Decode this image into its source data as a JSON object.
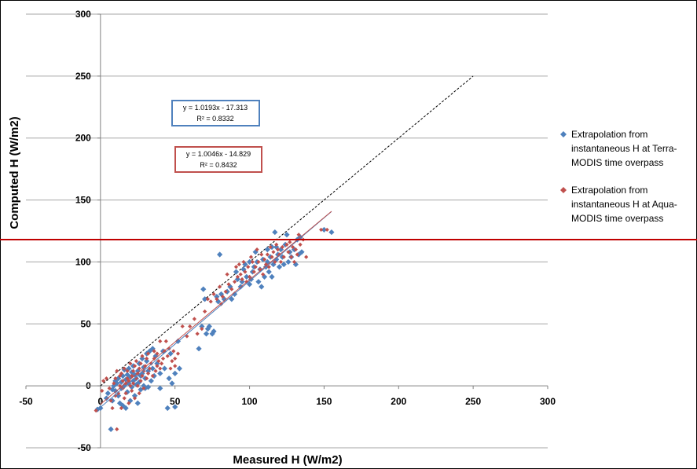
{
  "chart_data": {
    "type": "scatter",
    "title": "",
    "xlabel": "Measured H (W/m2)",
    "ylabel": "Computed H (W/m2)",
    "xlim": [
      -50,
      300
    ],
    "ylim": [
      -50,
      300
    ],
    "x_ticks": [
      "-50",
      "0",
      "50",
      "100",
      "150",
      "200",
      "250",
      "300"
    ],
    "y_ticks": [
      "-50",
      "0",
      "50",
      "100",
      "150",
      "200",
      "250",
      "300"
    ],
    "grid": "horizontal",
    "legend_position": "right",
    "one_to_one_line": {
      "x": [
        0,
        250
      ],
      "y": [
        0,
        250
      ],
      "color": "#000000",
      "style": "dashed"
    },
    "highlight_line": {
      "y": 118,
      "color": "#c00000"
    },
    "series": [
      {
        "name": "Extrapolation from instantaneous H at Terra-MODIS time overpass",
        "legend_lines": [
          "Extrapolation from",
          "instantaneous H at Terra-",
          "MODIS time overpass"
        ],
        "color": "#4f81bd",
        "marker": "diamond",
        "fit": {
          "slope": 1.0193,
          "intercept": -17.313,
          "x_range": [
            0,
            155
          ],
          "equation": "y = 1.0193x - 17.313",
          "r2_label": "R² = 0.8332"
        },
        "points": [
          [
            -2,
            -19
          ],
          [
            0,
            -18
          ],
          [
            4,
            -10
          ],
          [
            5,
            -6
          ],
          [
            7,
            -35
          ],
          [
            8,
            -12
          ],
          [
            8,
            -3
          ],
          [
            9,
            0
          ],
          [
            10,
            4
          ],
          [
            10,
            -4
          ],
          [
            11,
            2
          ],
          [
            12,
            -8
          ],
          [
            12,
            6
          ],
          [
            13,
            -14
          ],
          [
            14,
            -2
          ],
          [
            14,
            3
          ],
          [
            15,
            8
          ],
          [
            15,
            -16
          ],
          [
            16,
            13
          ],
          [
            16,
            0
          ],
          [
            17,
            -18
          ],
          [
            17,
            5
          ],
          [
            18,
            9
          ],
          [
            18,
            -5
          ],
          [
            19,
            2
          ],
          [
            19,
            14
          ],
          [
            20,
            -12
          ],
          [
            20,
            7
          ],
          [
            21,
            -1
          ],
          [
            21,
            11
          ],
          [
            22,
            4
          ],
          [
            22,
            16
          ],
          [
            23,
            -8
          ],
          [
            23,
            9
          ],
          [
            24,
            1
          ],
          [
            24,
            6
          ],
          [
            25,
            12
          ],
          [
            25,
            -14
          ],
          [
            26,
            3
          ],
          [
            26,
            18
          ],
          [
            27,
            -3
          ],
          [
            27,
            8
          ],
          [
            28,
            10
          ],
          [
            28,
            22
          ],
          [
            29,
            0
          ],
          [
            29,
            15
          ],
          [
            30,
            -2
          ],
          [
            30,
            6
          ],
          [
            31,
            20
          ],
          [
            31,
            26
          ],
          [
            32,
            -1
          ],
          [
            32,
            12
          ],
          [
            33,
            28
          ],
          [
            34,
            4
          ],
          [
            35,
            14
          ],
          [
            35,
            30
          ],
          [
            36,
            8
          ],
          [
            37,
            24
          ],
          [
            38,
            18
          ],
          [
            40,
            10
          ],
          [
            40,
            -2
          ],
          [
            42,
            28
          ],
          [
            43,
            14
          ],
          [
            45,
            -18
          ],
          [
            46,
            6
          ],
          [
            47,
            26
          ],
          [
            48,
            2
          ],
          [
            50,
            10
          ],
          [
            50,
            -17
          ],
          [
            52,
            36
          ],
          [
            53,
            14
          ],
          [
            66,
            30
          ],
          [
            68,
            48
          ],
          [
            69,
            78
          ],
          [
            70,
            70
          ],
          [
            71,
            42
          ],
          [
            72,
            46
          ],
          [
            73,
            48
          ],
          [
            75,
            42
          ],
          [
            76,
            44
          ],
          [
            78,
            72
          ],
          [
            79,
            68
          ],
          [
            80,
            106
          ],
          [
            81,
            74
          ],
          [
            83,
            70
          ],
          [
            85,
            76
          ],
          [
            87,
            80
          ],
          [
            88,
            70
          ],
          [
            90,
            74
          ],
          [
            91,
            92
          ],
          [
            92,
            86
          ],
          [
            94,
            80
          ],
          [
            95,
            84
          ],
          [
            96,
            94
          ],
          [
            97,
            98
          ],
          [
            98,
            88
          ],
          [
            100,
            82
          ],
          [
            100,
            100
          ],
          [
            101,
            86
          ],
          [
            102,
            92
          ],
          [
            103,
            96
          ],
          [
            104,
            108
          ],
          [
            105,
            100
          ],
          [
            106,
            84
          ],
          [
            107,
            94
          ],
          [
            108,
            80
          ],
          [
            109,
            102
          ],
          [
            110,
            88
          ],
          [
            111,
            96
          ],
          [
            112,
            110
          ],
          [
            112,
            100
          ],
          [
            113,
            92
          ],
          [
            114,
            104
          ],
          [
            115,
            88
          ],
          [
            115,
            112
          ],
          [
            116,
            98
          ],
          [
            117,
            124
          ],
          [
            118,
            102
          ],
          [
            118,
            112
          ],
          [
            119,
            106
          ],
          [
            120,
            96
          ],
          [
            121,
            110
          ],
          [
            122,
            104
          ],
          [
            123,
            98
          ],
          [
            124,
            114
          ],
          [
            125,
            122
          ],
          [
            126,
            100
          ],
          [
            127,
            108
          ],
          [
            128,
            104
          ],
          [
            130,
            110
          ],
          [
            131,
            98
          ],
          [
            132,
            118
          ],
          [
            133,
            106
          ],
          [
            134,
            120
          ],
          [
            135,
            108
          ],
          [
            150,
            126
          ],
          [
            155,
            124
          ]
        ]
      },
      {
        "name": "Extrapolation from instantaneous H at Aqua-MODIS time overpass",
        "legend_lines": [
          "Extrapolation from",
          "instantaneous H at Aqua-",
          "MODIS time overpass"
        ],
        "color": "#c0504d",
        "marker": "diamond",
        "fit": {
          "slope": 1.0046,
          "intercept": -14.829,
          "x_range": [
            0,
            155
          ],
          "equation": "y = 1.0046x - 14.829",
          "r2_label": "R² = 0.8432"
        },
        "points": [
          [
            -3,
            -20
          ],
          [
            1,
            -4
          ],
          [
            2,
            4
          ],
          [
            4,
            6
          ],
          [
            6,
            -2
          ],
          [
            7,
            -12
          ],
          [
            8,
            -18
          ],
          [
            9,
            2
          ],
          [
            10,
            -8
          ],
          [
            10,
            6
          ],
          [
            11,
            -35
          ],
          [
            11,
            12
          ],
          [
            12,
            -6
          ],
          [
            13,
            0
          ],
          [
            13,
            8
          ],
          [
            14,
            -18
          ],
          [
            14,
            10
          ],
          [
            15,
            -2
          ],
          [
            15,
            4
          ],
          [
            16,
            -10
          ],
          [
            16,
            14
          ],
          [
            17,
            2
          ],
          [
            17,
            -6
          ],
          [
            18,
            6
          ],
          [
            18,
            12
          ],
          [
            19,
            -14
          ],
          [
            19,
            4
          ],
          [
            20,
            0
          ],
          [
            20,
            18
          ],
          [
            21,
            8
          ],
          [
            21,
            -4
          ],
          [
            22,
            12
          ],
          [
            22,
            2
          ],
          [
            23,
            16
          ],
          [
            23,
            -10
          ],
          [
            24,
            6
          ],
          [
            24,
            20
          ],
          [
            25,
            0
          ],
          [
            25,
            10
          ],
          [
            26,
            14
          ],
          [
            26,
            -6
          ],
          [
            27,
            18
          ],
          [
            27,
            4
          ],
          [
            28,
            8
          ],
          [
            28,
            24
          ],
          [
            29,
            12
          ],
          [
            29,
            -2
          ],
          [
            30,
            16
          ],
          [
            31,
            6
          ],
          [
            31,
            22
          ],
          [
            32,
            10
          ],
          [
            32,
            26
          ],
          [
            33,
            14
          ],
          [
            34,
            18
          ],
          [
            35,
            8
          ],
          [
            36,
            22
          ],
          [
            36,
            28
          ],
          [
            37,
            12
          ],
          [
            38,
            16
          ],
          [
            38,
            26
          ],
          [
            39,
            20
          ],
          [
            40,
            14
          ],
          [
            40,
            36
          ],
          [
            41,
            18
          ],
          [
            42,
            22
          ],
          [
            43,
            28
          ],
          [
            44,
            36
          ],
          [
            45,
            24
          ],
          [
            46,
            30
          ],
          [
            47,
            14
          ],
          [
            48,
            20
          ],
          [
            49,
            28
          ],
          [
            50,
            16
          ],
          [
            50,
            22
          ],
          [
            52,
            26
          ],
          [
            55,
            48
          ],
          [
            58,
            40
          ],
          [
            60,
            48
          ],
          [
            63,
            54
          ],
          [
            65,
            42
          ],
          [
            68,
            46
          ],
          [
            70,
            60
          ],
          [
            72,
            70
          ],
          [
            74,
            68
          ],
          [
            76,
            74
          ],
          [
            78,
            70
          ],
          [
            80,
            80
          ],
          [
            81,
            66
          ],
          [
            82,
            72
          ],
          [
            84,
            76
          ],
          [
            85,
            90
          ],
          [
            86,
            82
          ],
          [
            88,
            78
          ],
          [
            90,
            84
          ],
          [
            91,
            96
          ],
          [
            92,
            88
          ],
          [
            93,
            98
          ],
          [
            94,
            90
          ],
          [
            95,
            86
          ],
          [
            96,
            100
          ],
          [
            97,
            92
          ],
          [
            98,
            84
          ],
          [
            99,
            96
          ],
          [
            100,
            88
          ],
          [
            101,
            104
          ],
          [
            102,
            100
          ],
          [
            103,
            92
          ],
          [
            104,
            96
          ],
          [
            105,
            110
          ],
          [
            106,
            100
          ],
          [
            107,
            94
          ],
          [
            108,
            106
          ],
          [
            109,
            90
          ],
          [
            110,
            102
          ],
          [
            111,
            98
          ],
          [
            112,
            106
          ],
          [
            113,
            96
          ],
          [
            114,
            112
          ],
          [
            115,
            104
          ],
          [
            116,
            108
          ],
          [
            117,
            100
          ],
          [
            118,
            114
          ],
          [
            119,
            110
          ],
          [
            120,
            106
          ],
          [
            121,
            100
          ],
          [
            122,
            112
          ],
          [
            123,
            104
          ],
          [
            125,
            114
          ],
          [
            126,
            108
          ],
          [
            127,
            116
          ],
          [
            128,
            104
          ],
          [
            129,
            112
          ],
          [
            130,
            100
          ],
          [
            131,
            110
          ],
          [
            132,
            106
          ],
          [
            133,
            122
          ],
          [
            134,
            114
          ],
          [
            136,
            118
          ],
          [
            138,
            104
          ],
          [
            148,
            126
          ],
          [
            152,
            126
          ]
        ]
      }
    ]
  }
}
